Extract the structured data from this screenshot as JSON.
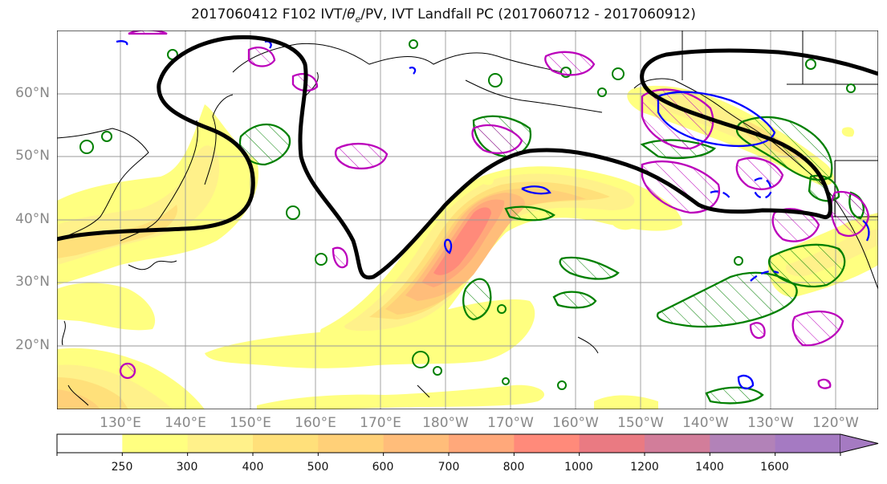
{
  "title": "2017060412 F102 IVT/θe/PV, IVT Landfall PC (2017060712 - 2017060912)",
  "title_parts": {
    "before": "2017060412 F102 IVT/",
    "theta": "θ",
    "sub": "e",
    "after": "/PV, IVT Landfall PC (2017060712 - 2017060912)"
  },
  "map": {
    "projection": "equirectangular",
    "lon_range": [
      120,
      245
    ],
    "lat_range": [
      10,
      70
    ],
    "grid": true,
    "lat_labels": [
      "60°N",
      "50°N",
      "40°N",
      "30°N",
      "20°N"
    ],
    "lon_labels": [
      "130°E",
      "140°E",
      "150°E",
      "160°E",
      "170°E",
      "180°W",
      "170°W",
      "160°W",
      "150°W",
      "140°W",
      "130°W",
      "120°W"
    ],
    "layers": [
      {
        "name": "IVT shading",
        "type": "filled-contour"
      },
      {
        "name": "theta-e contour",
        "color": "#000000"
      },
      {
        "name": "PV contours",
        "color": "#0000ff"
      },
      {
        "name": "IVT landfall PC positive",
        "color": "#bb00bb",
        "hatched": true
      },
      {
        "name": "IVT landfall PC green",
        "color": "#008000",
        "hatched": true
      }
    ]
  },
  "colorbar": {
    "ticks": [
      "250",
      "300",
      "400",
      "500",
      "600",
      "700",
      "800",
      "1000",
      "1200",
      "1400",
      "1600"
    ],
    "colors": [
      "#ffffff",
      "#ffff80",
      "#fff18a",
      "#ffe07a",
      "#ffd078",
      "#ffbd7a",
      "#ffa87a",
      "#ff8a7a",
      "#ea7a82",
      "#d27d9a",
      "#b282b8",
      "#a57ac2"
    ],
    "extend": "max"
  }
}
